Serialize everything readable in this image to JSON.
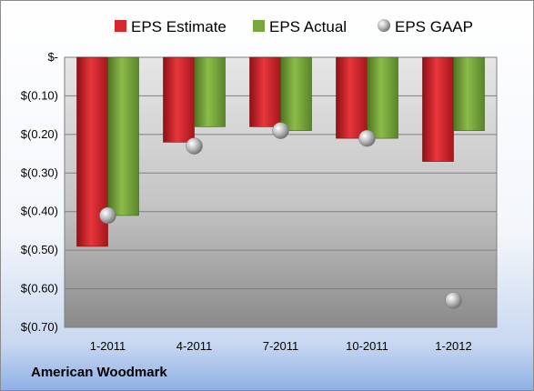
{
  "company_name": "American Woodmark",
  "chart_data": {
    "type": "bar",
    "categories": [
      "1-2011",
      "4-2011",
      "7-2011",
      "10-2011",
      "1-2012"
    ],
    "series": [
      {
        "name": "EPS Estimate",
        "kind": "bar",
        "color": "#d9272e",
        "values": [
          -0.49,
          -0.22,
          -0.18,
          -0.21,
          -0.27
        ]
      },
      {
        "name": "EPS Actual",
        "kind": "bar",
        "color": "#78a83b",
        "values": [
          -0.41,
          -0.18,
          -0.19,
          -0.21,
          -0.19
        ]
      },
      {
        "name": "EPS GAAP",
        "kind": "marker",
        "color": "#a6a6a6",
        "values": [
          -0.41,
          -0.23,
          -0.19,
          -0.21,
          -0.63
        ]
      }
    ],
    "ylim": [
      -0.7,
      0
    ],
    "yticks": [
      0,
      -0.1,
      -0.2,
      -0.3,
      -0.4,
      -0.5,
      -0.6,
      -0.7
    ],
    "ytick_labels": [
      "$-",
      "$(0.10)",
      "$(0.20)",
      "$(0.30)",
      "$(0.40)",
      "$(0.50)",
      "$(0.60)",
      "$(0.70)"
    ],
    "grid": true,
    "legend_position": "top"
  }
}
